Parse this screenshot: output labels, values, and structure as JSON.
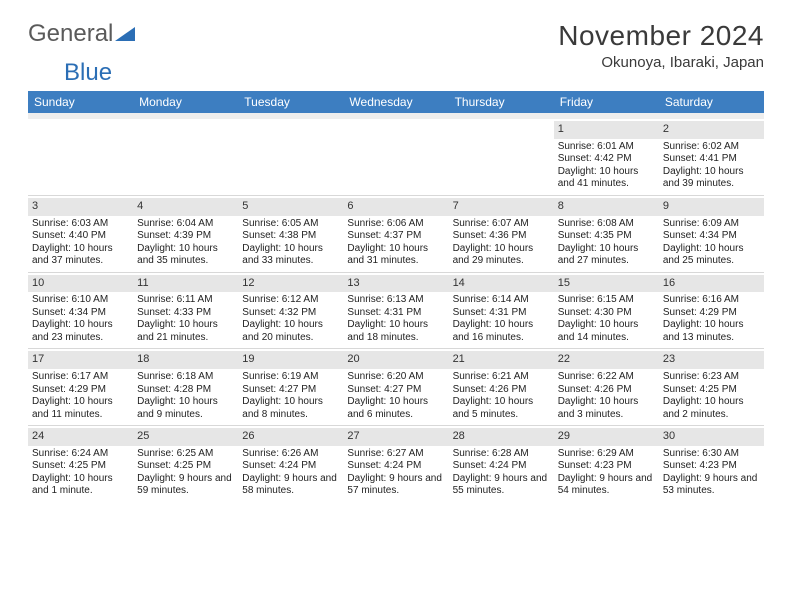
{
  "logo": {
    "text_a": "General",
    "text_b": "Blue"
  },
  "title": "November 2024",
  "location": "Okunoya, Ibaraki, Japan",
  "colors": {
    "header_bg": "#3d7ec1",
    "header_text": "#ffffff",
    "daynum_bg": "#e6e6e6",
    "text": "#222222",
    "logo_gray": "#5a5a5a",
    "logo_blue": "#2b6eb5"
  },
  "dow": [
    "Sunday",
    "Monday",
    "Tuesday",
    "Wednesday",
    "Thursday",
    "Friday",
    "Saturday"
  ],
  "weeks": [
    [
      null,
      null,
      null,
      null,
      null,
      {
        "n": "1",
        "sunrise": "6:01 AM",
        "sunset": "4:42 PM",
        "daylight": "10 hours and 41 minutes."
      },
      {
        "n": "2",
        "sunrise": "6:02 AM",
        "sunset": "4:41 PM",
        "daylight": "10 hours and 39 minutes."
      }
    ],
    [
      {
        "n": "3",
        "sunrise": "6:03 AM",
        "sunset": "4:40 PM",
        "daylight": "10 hours and 37 minutes."
      },
      {
        "n": "4",
        "sunrise": "6:04 AM",
        "sunset": "4:39 PM",
        "daylight": "10 hours and 35 minutes."
      },
      {
        "n": "5",
        "sunrise": "6:05 AM",
        "sunset": "4:38 PM",
        "daylight": "10 hours and 33 minutes."
      },
      {
        "n": "6",
        "sunrise": "6:06 AM",
        "sunset": "4:37 PM",
        "daylight": "10 hours and 31 minutes."
      },
      {
        "n": "7",
        "sunrise": "6:07 AM",
        "sunset": "4:36 PM",
        "daylight": "10 hours and 29 minutes."
      },
      {
        "n": "8",
        "sunrise": "6:08 AM",
        "sunset": "4:35 PM",
        "daylight": "10 hours and 27 minutes."
      },
      {
        "n": "9",
        "sunrise": "6:09 AM",
        "sunset": "4:34 PM",
        "daylight": "10 hours and 25 minutes."
      }
    ],
    [
      {
        "n": "10",
        "sunrise": "6:10 AM",
        "sunset": "4:34 PM",
        "daylight": "10 hours and 23 minutes."
      },
      {
        "n": "11",
        "sunrise": "6:11 AM",
        "sunset": "4:33 PM",
        "daylight": "10 hours and 21 minutes."
      },
      {
        "n": "12",
        "sunrise": "6:12 AM",
        "sunset": "4:32 PM",
        "daylight": "10 hours and 20 minutes."
      },
      {
        "n": "13",
        "sunrise": "6:13 AM",
        "sunset": "4:31 PM",
        "daylight": "10 hours and 18 minutes."
      },
      {
        "n": "14",
        "sunrise": "6:14 AM",
        "sunset": "4:31 PM",
        "daylight": "10 hours and 16 minutes."
      },
      {
        "n": "15",
        "sunrise": "6:15 AM",
        "sunset": "4:30 PM",
        "daylight": "10 hours and 14 minutes."
      },
      {
        "n": "16",
        "sunrise": "6:16 AM",
        "sunset": "4:29 PM",
        "daylight": "10 hours and 13 minutes."
      }
    ],
    [
      {
        "n": "17",
        "sunrise": "6:17 AM",
        "sunset": "4:29 PM",
        "daylight": "10 hours and 11 minutes."
      },
      {
        "n": "18",
        "sunrise": "6:18 AM",
        "sunset": "4:28 PM",
        "daylight": "10 hours and 9 minutes."
      },
      {
        "n": "19",
        "sunrise": "6:19 AM",
        "sunset": "4:27 PM",
        "daylight": "10 hours and 8 minutes."
      },
      {
        "n": "20",
        "sunrise": "6:20 AM",
        "sunset": "4:27 PM",
        "daylight": "10 hours and 6 minutes."
      },
      {
        "n": "21",
        "sunrise": "6:21 AM",
        "sunset": "4:26 PM",
        "daylight": "10 hours and 5 minutes."
      },
      {
        "n": "22",
        "sunrise": "6:22 AM",
        "sunset": "4:26 PM",
        "daylight": "10 hours and 3 minutes."
      },
      {
        "n": "23",
        "sunrise": "6:23 AM",
        "sunset": "4:25 PM",
        "daylight": "10 hours and 2 minutes."
      }
    ],
    [
      {
        "n": "24",
        "sunrise": "6:24 AM",
        "sunset": "4:25 PM",
        "daylight": "10 hours and 1 minute."
      },
      {
        "n": "25",
        "sunrise": "6:25 AM",
        "sunset": "4:25 PM",
        "daylight": "9 hours and 59 minutes."
      },
      {
        "n": "26",
        "sunrise": "6:26 AM",
        "sunset": "4:24 PM",
        "daylight": "9 hours and 58 minutes."
      },
      {
        "n": "27",
        "sunrise": "6:27 AM",
        "sunset": "4:24 PM",
        "daylight": "9 hours and 57 minutes."
      },
      {
        "n": "28",
        "sunrise": "6:28 AM",
        "sunset": "4:24 PM",
        "daylight": "9 hours and 55 minutes."
      },
      {
        "n": "29",
        "sunrise": "6:29 AM",
        "sunset": "4:23 PM",
        "daylight": "9 hours and 54 minutes."
      },
      {
        "n": "30",
        "sunrise": "6:30 AM",
        "sunset": "4:23 PM",
        "daylight": "9 hours and 53 minutes."
      }
    ]
  ],
  "labels": {
    "sunrise": "Sunrise:",
    "sunset": "Sunset:",
    "daylight": "Daylight:"
  }
}
